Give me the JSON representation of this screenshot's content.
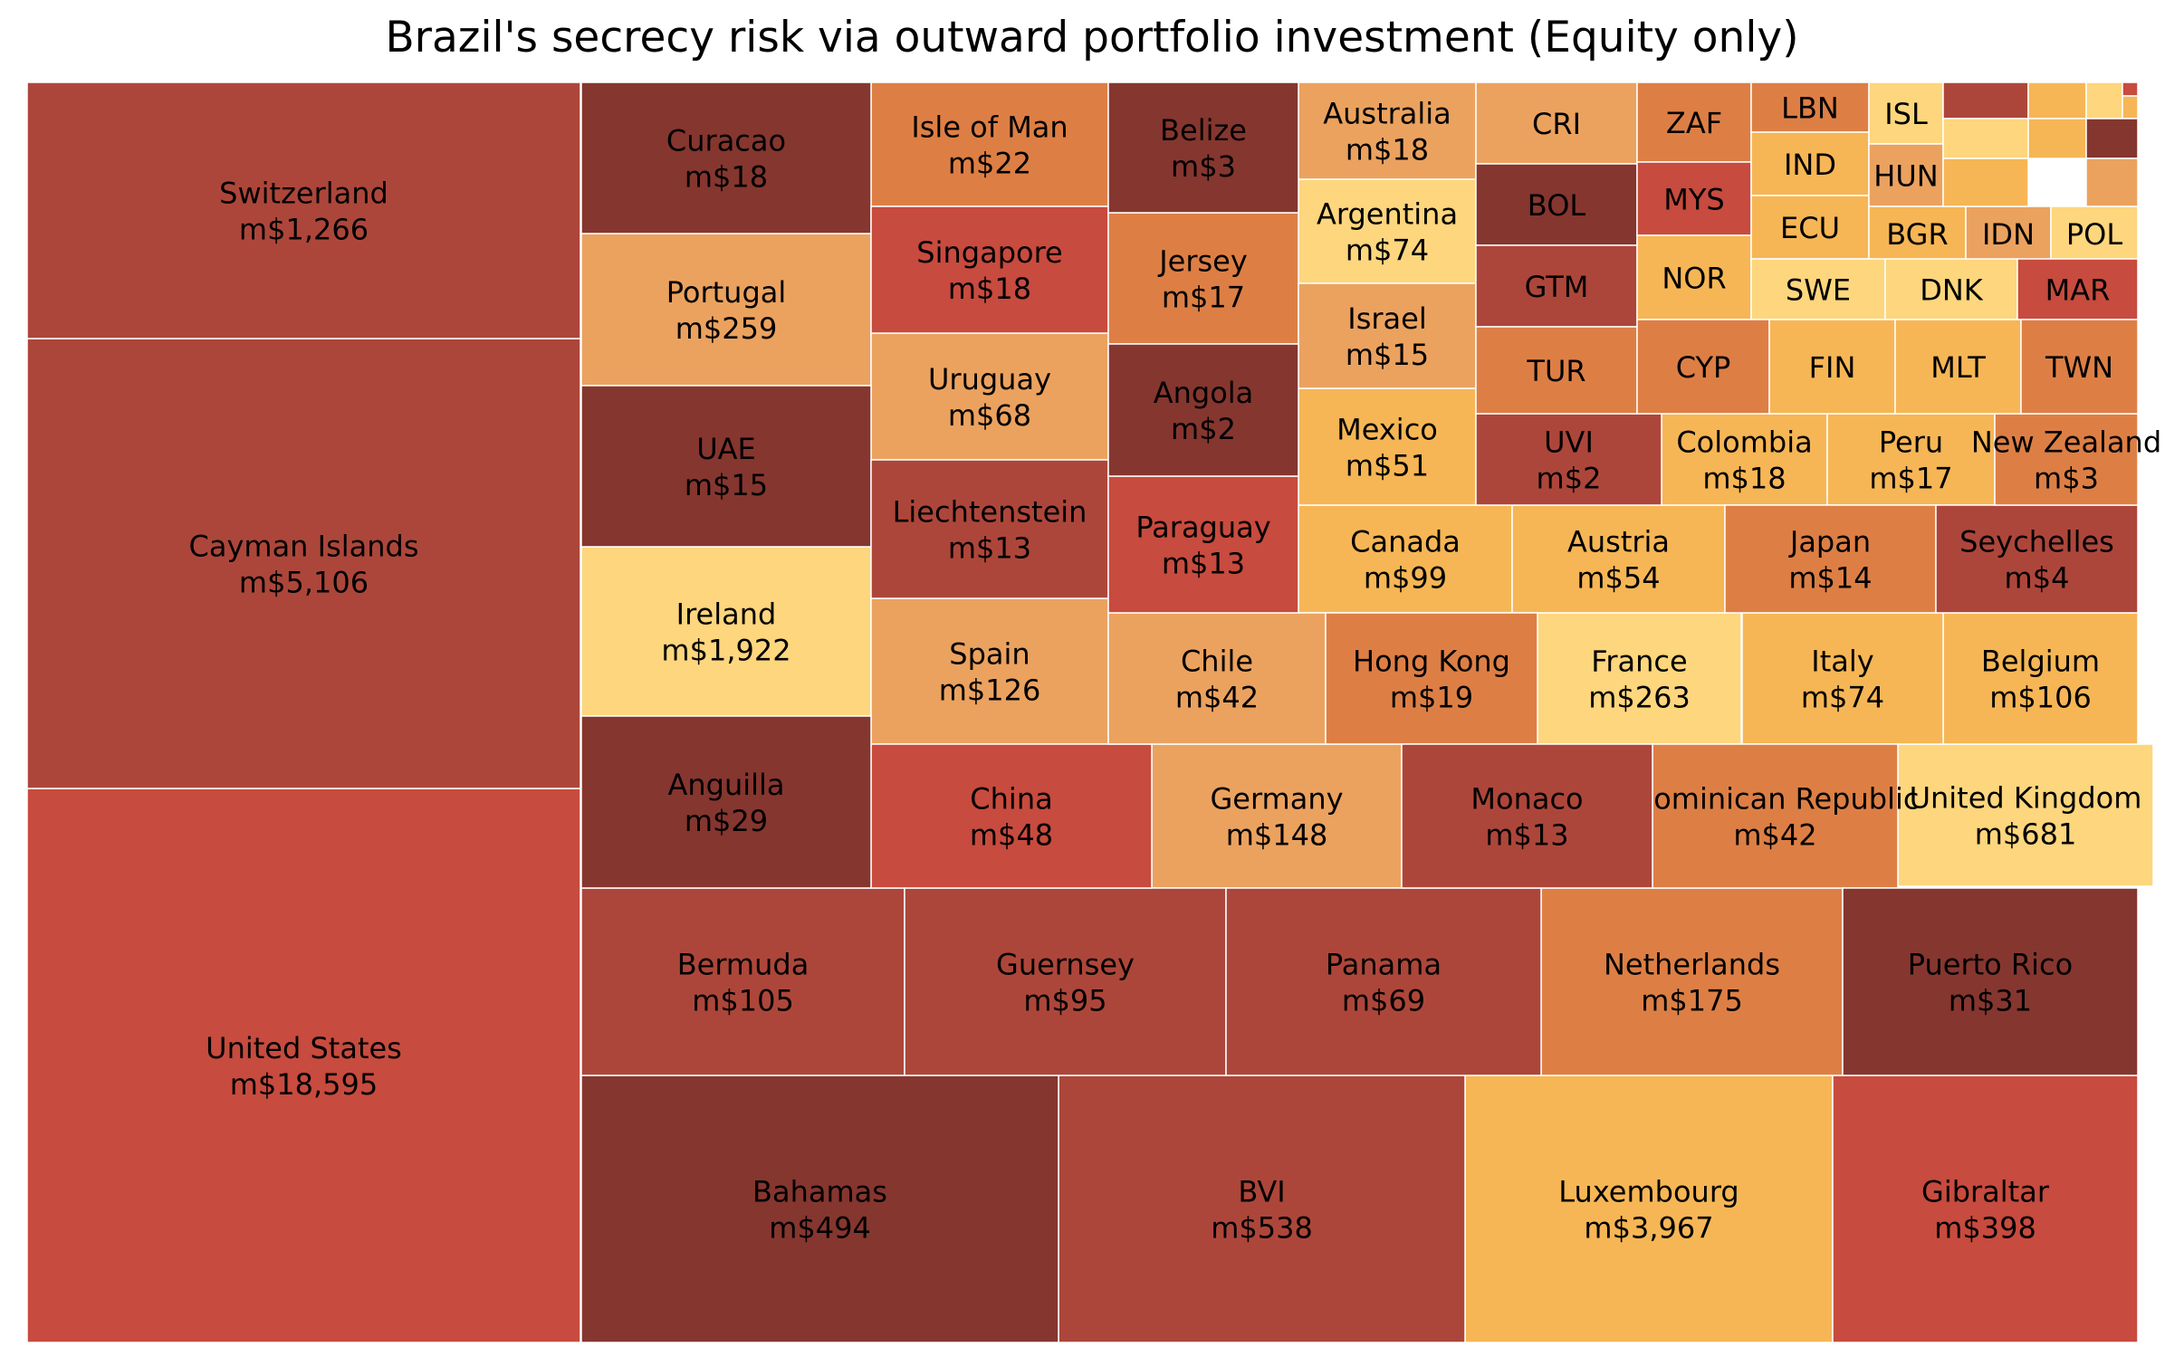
{
  "chart_data": {
    "type": "treemap",
    "title": "Brazil's secrecy risk via outward portfolio investment (Equity only)",
    "value_prefix": "m$",
    "palette": {
      "dark": "#85362f",
      "red_dark": "#ad463a",
      "red": "#c74b3e",
      "orange": "#dd7f45",
      "tan": "#eba25f",
      "gold": "#f6b655",
      "yellow": "#fdd67d"
    },
    "tiles": [
      {
        "name": "United States",
        "value": 18595,
        "color": "#c74b3e"
      },
      {
        "name": "Cayman Islands",
        "value": 5106,
        "color": "#ad463a"
      },
      {
        "name": "Switzerland",
        "value": 1266,
        "color": "#ad463a"
      },
      {
        "name": "Luxembourg",
        "value": 3967,
        "color": "#f6b655"
      },
      {
        "name": "Ireland",
        "value": 1922,
        "color": "#fdd67d"
      },
      {
        "name": "United Kingdom",
        "value": 681,
        "color": "#fdd67d"
      },
      {
        "name": "BVI",
        "value": 538,
        "color": "#ad463a"
      },
      {
        "name": "Bahamas",
        "value": 494,
        "color": "#85362f"
      },
      {
        "name": "Gibraltar",
        "value": 398,
        "color": "#c74b3e"
      },
      {
        "name": "France",
        "value": 263,
        "color": "#fdd67d"
      },
      {
        "name": "Portugal",
        "value": 259,
        "color": "#eba25f"
      },
      {
        "name": "Netherlands",
        "value": 175,
        "color": "#dd7f45"
      },
      {
        "name": "Germany",
        "value": 148,
        "color": "#eba25f"
      },
      {
        "name": "Spain",
        "value": 126,
        "color": "#eba25f"
      },
      {
        "name": "Belgium",
        "value": 106,
        "color": "#f6b655"
      },
      {
        "name": "Bermuda",
        "value": 105,
        "color": "#ad463a"
      },
      {
        "name": "Canada",
        "value": 99,
        "color": "#f6b655"
      },
      {
        "name": "Guernsey",
        "value": 95,
        "color": "#ad463a"
      },
      {
        "name": "Argentina",
        "value": 74,
        "color": "#fdd67d"
      },
      {
        "name": "Italy",
        "value": 74,
        "color": "#f6b655"
      },
      {
        "name": "Panama",
        "value": 69,
        "color": "#ad463a"
      },
      {
        "name": "Uruguay",
        "value": 68,
        "color": "#eba25f"
      },
      {
        "name": "Austria",
        "value": 54,
        "color": "#f6b655"
      },
      {
        "name": "Mexico",
        "value": 51,
        "color": "#f6b655"
      },
      {
        "name": "China",
        "value": 48,
        "color": "#c74b3e"
      },
      {
        "name": "Chile",
        "value": 42,
        "color": "#eba25f"
      },
      {
        "name": "Dominican Republic",
        "value": 42,
        "color": "#dd7f45"
      },
      {
        "name": "Puerto Rico",
        "value": 31,
        "color": "#85362f"
      },
      {
        "name": "Anguilla",
        "value": 29,
        "color": "#85362f"
      },
      {
        "name": "Isle of Man",
        "value": 22,
        "color": "#dd7f45"
      },
      {
        "name": "Hong Kong",
        "value": 19,
        "color": "#dd7f45"
      },
      {
        "name": "Curacao",
        "value": 18,
        "color": "#85362f"
      },
      {
        "name": "Singapore",
        "value": 18,
        "color": "#c74b3e"
      },
      {
        "name": "Australia",
        "value": 18,
        "color": "#eba25f"
      },
      {
        "name": "Colombia",
        "value": 18,
        "color": "#f6b655"
      },
      {
        "name": "Jersey",
        "value": 17,
        "color": "#dd7f45"
      },
      {
        "name": "Peru",
        "value": 17,
        "color": "#f6b655"
      },
      {
        "name": "UAE",
        "value": 15,
        "color": "#85362f"
      },
      {
        "name": "Israel",
        "value": 15,
        "color": "#eba25f"
      },
      {
        "name": "Japan",
        "value": 14,
        "color": "#dd7f45"
      },
      {
        "name": "Liechtenstein",
        "value": 13,
        "color": "#ad463a"
      },
      {
        "name": "Paraguay",
        "value": 13,
        "color": "#c74b3e"
      },
      {
        "name": "Monaco",
        "value": 13,
        "color": "#ad463a"
      },
      {
        "name": "Seychelles",
        "value": 4,
        "color": "#ad463a"
      },
      {
        "name": "Belize",
        "value": 3,
        "color": "#85362f"
      },
      {
        "name": "New Zealand",
        "value": 3,
        "color": "#dd7f45"
      },
      {
        "name": "Angola",
        "value": 2,
        "color": "#85362f"
      },
      {
        "name": "UVI",
        "value": 2,
        "color": "#ad463a"
      },
      {
        "name": "CRI",
        "color": "#eba25f"
      },
      {
        "name": "BOL",
        "color": "#85362f"
      },
      {
        "name": "GTM",
        "color": "#ad463a"
      },
      {
        "name": "TUR",
        "color": "#dd7f45"
      },
      {
        "name": "ZAF",
        "color": "#dd7f45"
      },
      {
        "name": "MYS",
        "color": "#c74b3e"
      },
      {
        "name": "NOR",
        "color": "#f6b655"
      },
      {
        "name": "LBN",
        "color": "#dd7f45"
      },
      {
        "name": "IND",
        "color": "#f6b655"
      },
      {
        "name": "ECU",
        "color": "#f6b655"
      },
      {
        "name": "ISL",
        "color": "#fdd67d"
      },
      {
        "name": "HUN",
        "color": "#eba25f"
      },
      {
        "name": "BGR",
        "color": "#f6b655"
      },
      {
        "name": "IDN",
        "color": "#eba25f"
      },
      {
        "name": "POL",
        "color": "#fdd67d"
      },
      {
        "name": "SWE",
        "color": "#fdd67d"
      },
      {
        "name": "DNK",
        "color": "#fdd67d"
      },
      {
        "name": "MAR",
        "color": "#c74b3e"
      },
      {
        "name": "CYP",
        "color": "#dd7f45"
      },
      {
        "name": "FIN",
        "color": "#f6b655"
      },
      {
        "name": "MLT",
        "color": "#f6b655"
      },
      {
        "name": "TWN",
        "color": "#dd7f45"
      },
      {
        "color": "#ad463a"
      },
      {
        "color": "#f6b655"
      },
      {
        "color": "#fdd67d"
      },
      {
        "color": "#c74b3e"
      },
      {
        "color": "#f6b655"
      },
      {
        "color": "#fdd67d"
      },
      {
        "color": "#f6b655"
      },
      {
        "color": "#85362f"
      },
      {
        "color": "#f6b655"
      },
      {
        "color": "#eba25f"
      }
    ]
  }
}
